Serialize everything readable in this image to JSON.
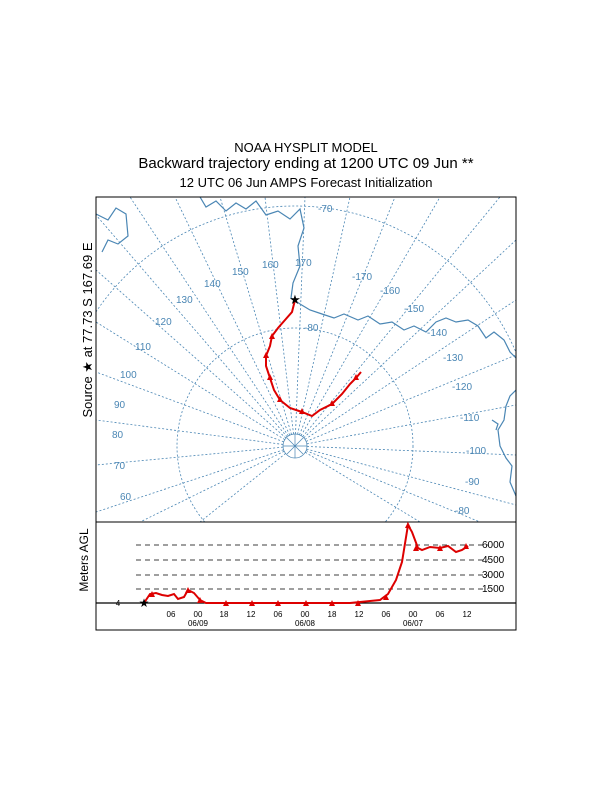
{
  "header": {
    "line1": "NOAA HYSPLIT MODEL",
    "line2": "Backward trajectory ending at 1200 UTC 09 Jun **",
    "line3": "12 UTC 06 Jun    AMPS  Forecast Initialization"
  },
  "map": {
    "source_label": "Source ★ at  77.73 S  167.69 E",
    "lat_labels": [
      "-70",
      "-80"
    ],
    "lon_labels": [
      "170",
      "160",
      "150",
      "140",
      "130",
      "120",
      "110",
      "100",
      "90",
      "80",
      "70",
      "60",
      "-170",
      "-160",
      "-150",
      "-140",
      "-130",
      "-120",
      "-110",
      "-100",
      "-90",
      "-80"
    ],
    "colors": {
      "grid": "#4a86b4",
      "coast": "#4a86b4",
      "trajectory": "#dd0000"
    }
  },
  "altitude_panel": {
    "ylabel": "Meters AGL",
    "levels": [
      "6000",
      "4500",
      "3000",
      "1500"
    ],
    "hour_ticks": [
      "06",
      "00",
      "18",
      "12",
      "06",
      "00",
      "18",
      "12",
      "06",
      "00",
      "06",
      "12"
    ],
    "date_labels": [
      "06/09",
      "06/08",
      "06/07"
    ]
  }
}
